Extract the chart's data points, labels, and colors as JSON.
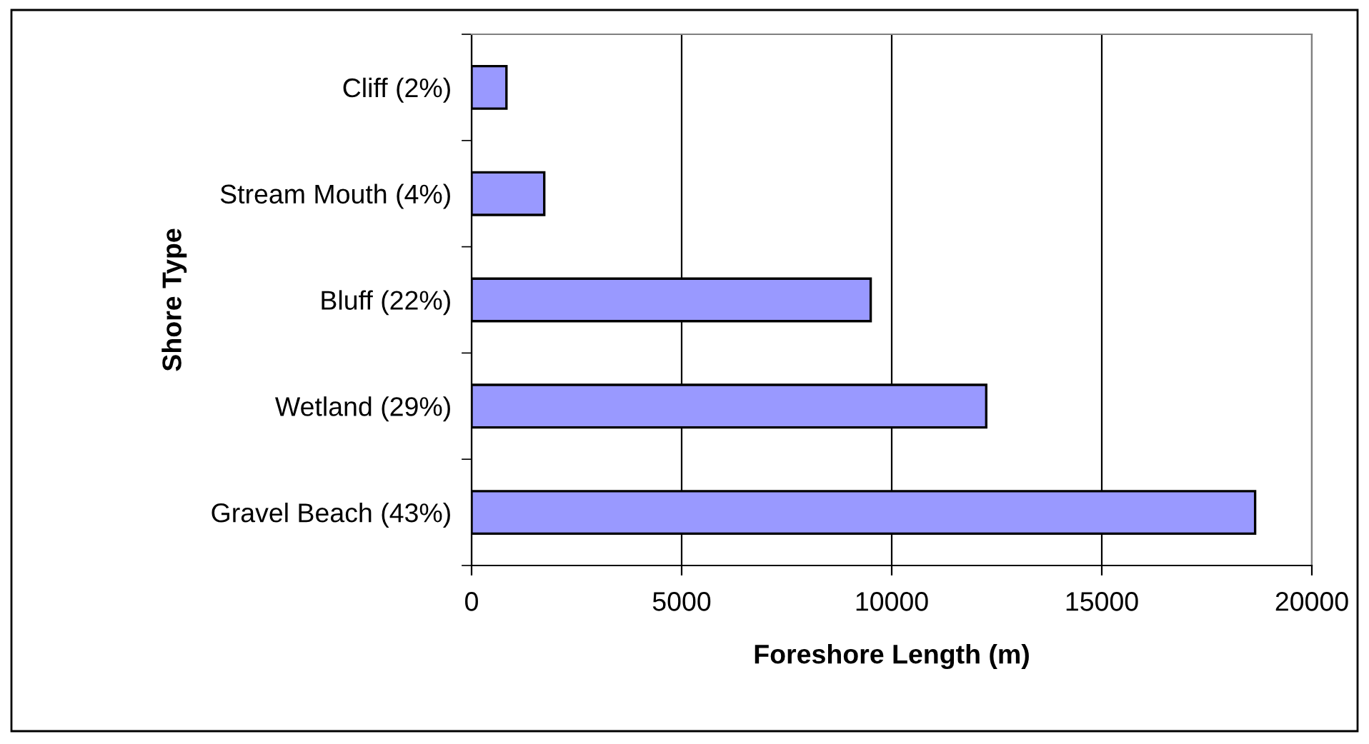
{
  "chart_data": {
    "type": "bar",
    "orientation": "horizontal",
    "categories": [
      "Cliff (2%)",
      "Stream Mouth (4%)",
      "Bluff (22%)",
      "Wetland (29%)",
      "Gravel Beach (43%)"
    ],
    "values": [
      830,
      1730,
      9500,
      12250,
      18650
    ],
    "color": "#9999ff",
    "xlabel": "Foreshore Length (m)",
    "ylabel": "Shore Type",
    "xlim": [
      0,
      20000
    ],
    "xticks": [
      0,
      5000,
      10000,
      15000,
      20000
    ],
    "grid": "x",
    "legend": false
  }
}
